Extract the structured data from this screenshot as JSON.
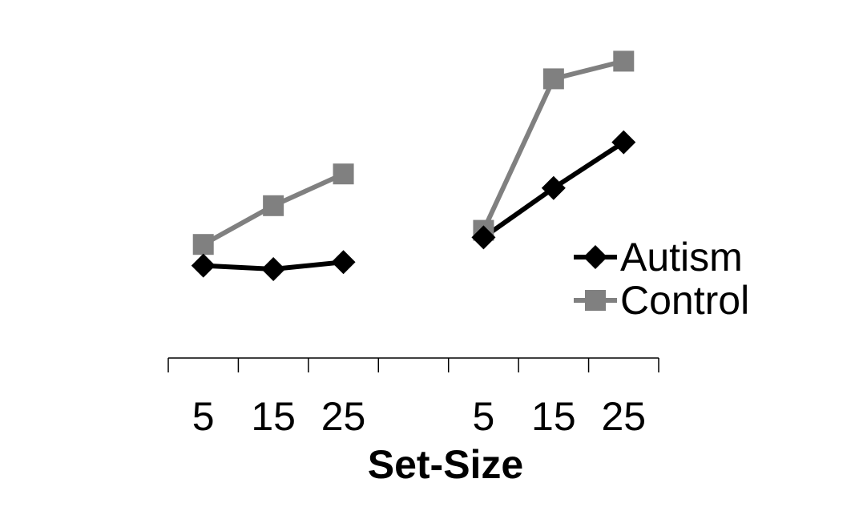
{
  "chart_data": {
    "type": "line",
    "xlabel": "Set-Size",
    "ylabel": "",
    "ylim": [
      0,
      100
    ],
    "grid": false,
    "legend_placement": "right",
    "groups": [
      {
        "categories": [
          "5",
          "15",
          "25"
        ],
        "series": [
          {
            "name": "Autism",
            "values": [
              36,
              35,
              37
            ]
          },
          {
            "name": "Control",
            "values": [
              42,
              53,
              62
            ]
          }
        ]
      },
      {
        "categories": [
          "5",
          "15",
          "25"
        ],
        "series": [
          {
            "name": "Autism",
            "values": [
              44,
              58,
              71
            ]
          },
          {
            "name": "Control",
            "values": [
              46,
              89,
              94
            ]
          }
        ]
      }
    ],
    "series_styles": [
      {
        "name": "Autism",
        "color": "#000000",
        "marker": "diamond"
      },
      {
        "name": "Control",
        "color": "#808080",
        "marker": "square"
      }
    ]
  }
}
